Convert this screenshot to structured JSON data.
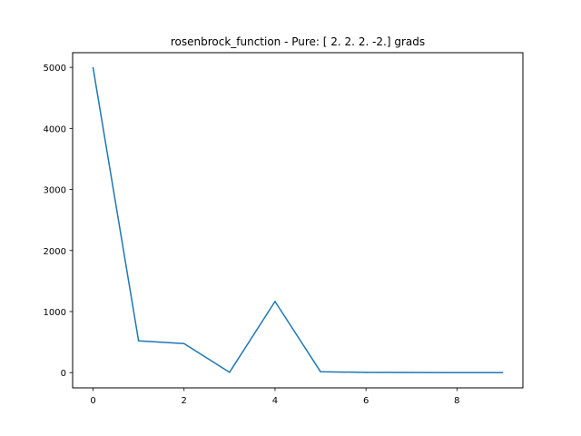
{
  "chart_data": {
    "type": "line",
    "title": "rosenbrock_function - Pure: [ 2.  2.  2. -2.] grads",
    "xlabel": "",
    "ylabel": "",
    "x": [
      0,
      1,
      2,
      3,
      4,
      5,
      6,
      7,
      8,
      9
    ],
    "series": [
      {
        "values": [
          4990,
          520,
          475,
          5,
          1165,
          15,
          2,
          1,
          0,
          0
        ],
        "color": "#1f77b4"
      }
    ],
    "xlim": [
      -0.45,
      9.45
    ],
    "ylim": [
      -250,
      5240
    ],
    "xticks": [
      0,
      2,
      4,
      6,
      8
    ],
    "yticks": [
      0,
      1000,
      2000,
      3000,
      4000,
      5000
    ],
    "grid": false,
    "legend": "none"
  }
}
